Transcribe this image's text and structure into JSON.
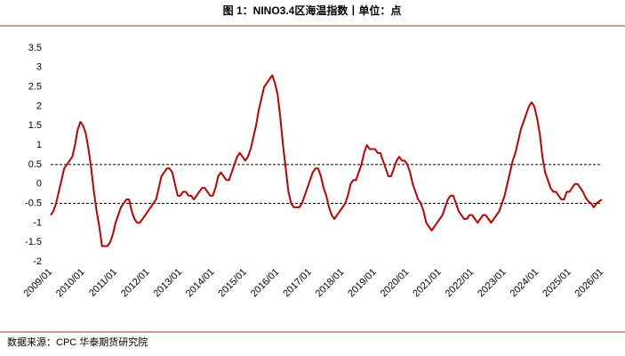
{
  "chart_data": {
    "type": "line",
    "title": "图 1：NINO3.4区海温指数丨单位：点",
    "source": "数据来源：CPC 华泰期货研究院",
    "categories": [
      "2009/01",
      null,
      null,
      null,
      null,
      null,
      null,
      null,
      null,
      null,
      null,
      null,
      "2010/01",
      null,
      null,
      null,
      null,
      null,
      null,
      null,
      null,
      null,
      null,
      null,
      "2011/01",
      null,
      null,
      null,
      null,
      null,
      null,
      null,
      null,
      null,
      null,
      null,
      "2012/01",
      null,
      null,
      null,
      null,
      null,
      null,
      null,
      null,
      null,
      null,
      null,
      "2013/01",
      null,
      null,
      null,
      null,
      null,
      null,
      null,
      null,
      null,
      null,
      null,
      "2014/01",
      null,
      null,
      null,
      null,
      null,
      null,
      null,
      null,
      null,
      null,
      null,
      "2015/01",
      null,
      null,
      null,
      null,
      null,
      null,
      null,
      null,
      null,
      null,
      null,
      "2016/01",
      null,
      null,
      null,
      null,
      null,
      null,
      null,
      null,
      null,
      null,
      null,
      "2017/01",
      null,
      null,
      null,
      null,
      null,
      null,
      null,
      null,
      null,
      null,
      null,
      "2018/01",
      null,
      null,
      null,
      null,
      null,
      null,
      null,
      null,
      null,
      null,
      null,
      "2019/01",
      null,
      null,
      null,
      null,
      null,
      null,
      null,
      null,
      null,
      null,
      null,
      "2020/01",
      null,
      null,
      null,
      null,
      null,
      null,
      null,
      null,
      null,
      null,
      null,
      "2021/01",
      null,
      null,
      null,
      null,
      null,
      null,
      null,
      null,
      null,
      null,
      null,
      "2022/01",
      null,
      null,
      null,
      null,
      null,
      null,
      null,
      null,
      null,
      null,
      null,
      "2023/01",
      null,
      null,
      null,
      null,
      null,
      null,
      null,
      null,
      null,
      null,
      null,
      "2024/01",
      null,
      null,
      null,
      null,
      null,
      null,
      null,
      null,
      null,
      null,
      null,
      "2025/01",
      null,
      null,
      null,
      null,
      null,
      null,
      null,
      null,
      null,
      null,
      null,
      "2026/01"
    ],
    "series": [
      {
        "name": "NINO3.4",
        "color": "#c00000",
        "values": [
          -0.8,
          -0.7,
          -0.5,
          -0.2,
          0.1,
          0.4,
          0.5,
          0.6,
          0.7,
          1.0,
          1.4,
          1.6,
          1.5,
          1.3,
          0.9,
          0.4,
          -0.2,
          -0.7,
          -1.1,
          -1.6,
          -1.6,
          -1.6,
          -1.5,
          -1.3,
          -1.0,
          -0.8,
          -0.6,
          -0.5,
          -0.4,
          -0.4,
          -0.7,
          -0.9,
          -1.0,
          -1.0,
          -0.9,
          -0.8,
          -0.7,
          -0.6,
          -0.5,
          -0.4,
          -0.1,
          0.2,
          0.3,
          0.4,
          0.4,
          0.3,
          0.0,
          -0.3,
          -0.3,
          -0.2,
          -0.2,
          -0.3,
          -0.3,
          -0.4,
          -0.3,
          -0.2,
          -0.1,
          -0.1,
          -0.2,
          -0.3,
          -0.3,
          -0.1,
          0.2,
          0.3,
          0.2,
          0.1,
          0.1,
          0.3,
          0.5,
          0.7,
          0.8,
          0.7,
          0.6,
          0.7,
          0.9,
          1.2,
          1.5,
          1.9,
          2.2,
          2.5,
          2.6,
          2.7,
          2.8,
          2.6,
          2.3,
          1.7,
          1.0,
          0.4,
          -0.2,
          -0.5,
          -0.6,
          -0.6,
          -0.6,
          -0.5,
          -0.3,
          -0.1,
          0.1,
          0.3,
          0.4,
          0.4,
          0.2,
          -0.1,
          -0.3,
          -0.6,
          -0.8,
          -0.9,
          -0.8,
          -0.7,
          -0.6,
          -0.5,
          -0.3,
          0.0,
          0.1,
          0.1,
          0.3,
          0.5,
          0.8,
          1.0,
          0.9,
          0.9,
          0.9,
          0.8,
          0.8,
          0.6,
          0.4,
          0.2,
          0.2,
          0.4,
          0.6,
          0.7,
          0.6,
          0.6,
          0.5,
          0.3,
          0.0,
          -0.2,
          -0.4,
          -0.5,
          -0.7,
          -1.0,
          -1.1,
          -1.2,
          -1.1,
          -1.0,
          -0.9,
          -0.8,
          -0.6,
          -0.4,
          -0.3,
          -0.3,
          -0.5,
          -0.7,
          -0.8,
          -0.9,
          -0.9,
          -0.8,
          -0.8,
          -0.9,
          -1.0,
          -0.9,
          -0.8,
          -0.8,
          -0.9,
          -1.0,
          -0.9,
          -0.8,
          -0.7,
          -0.5,
          -0.3,
          0.0,
          0.3,
          0.6,
          0.8,
          1.1,
          1.4,
          1.6,
          1.8,
          2.0,
          2.1,
          2.0,
          1.7,
          1.3,
          0.7,
          0.3,
          0.1,
          -0.1,
          -0.2,
          -0.2,
          -0.3,
          -0.4,
          -0.4,
          -0.2,
          -0.2,
          -0.1,
          0.0,
          0.0,
          -0.1,
          -0.2,
          -0.35,
          -0.45,
          -0.5,
          -0.6,
          -0.5,
          -0.45,
          -0.4
        ]
      }
    ],
    "reference_lines": [
      0.5,
      -0.5
    ],
    "ylim": [
      -2,
      3.5
    ],
    "yticks": [
      -2,
      -1.5,
      -1,
      -0.5,
      0,
      0.5,
      1,
      1.5,
      2,
      2.5,
      3,
      3.5
    ],
    "grid": false
  }
}
